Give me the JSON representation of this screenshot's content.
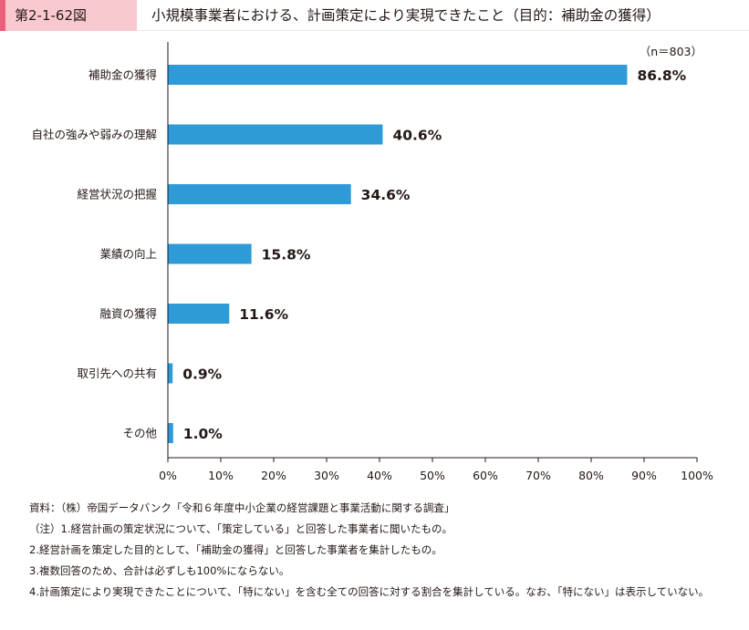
{
  "figure": {
    "label": "第2-1-62図",
    "title": "小規模事業者における、計画策定により実現できたこと（目的：補助金の獲得）"
  },
  "chart_data": {
    "type": "bar",
    "orientation": "horizontal",
    "sample_note": "（n＝803）",
    "categories": [
      "補助金の獲得",
      "自社の強みや弱みの理解",
      "経営状況の把握",
      "業績の向上",
      "融資の獲得",
      "取引先への共有",
      "その他"
    ],
    "values": [
      86.8,
      40.6,
      34.6,
      15.8,
      11.6,
      0.9,
      1.0
    ],
    "value_labels": [
      "86.8%",
      "40.6%",
      "34.6%",
      "15.8%",
      "11.6%",
      "0.9%",
      "1.0%"
    ],
    "x_ticks": [
      0,
      10,
      20,
      30,
      40,
      50,
      60,
      70,
      80,
      90,
      100
    ],
    "x_tick_labels": [
      "0%",
      "10%",
      "20%",
      "30%",
      "40%",
      "50%",
      "60%",
      "70%",
      "80%",
      "90%",
      "100%"
    ],
    "xlim": [
      0,
      100
    ],
    "grid": false,
    "bar_color": "#2e9ad6"
  },
  "notes": {
    "source": "資料：（株）帝国データバンク「令和６年度中小企業の経営課題と事業活動に関する調査」",
    "note1": "（注）1.経営計画の策定状況について、「策定している」と回答した事業者に聞いたもの。",
    "note2": "2.経営計画を策定した目的として、「補助金の獲得」と回答した事業者を集計したもの。",
    "note3": "3.複数回答のため、合計は必ずしも100%にならない。",
    "note4": "4.計画策定により実現できたことについて、「特にない」を含む全ての回答に対する割合を集計している。なお、「特にない」は表示していない。"
  }
}
